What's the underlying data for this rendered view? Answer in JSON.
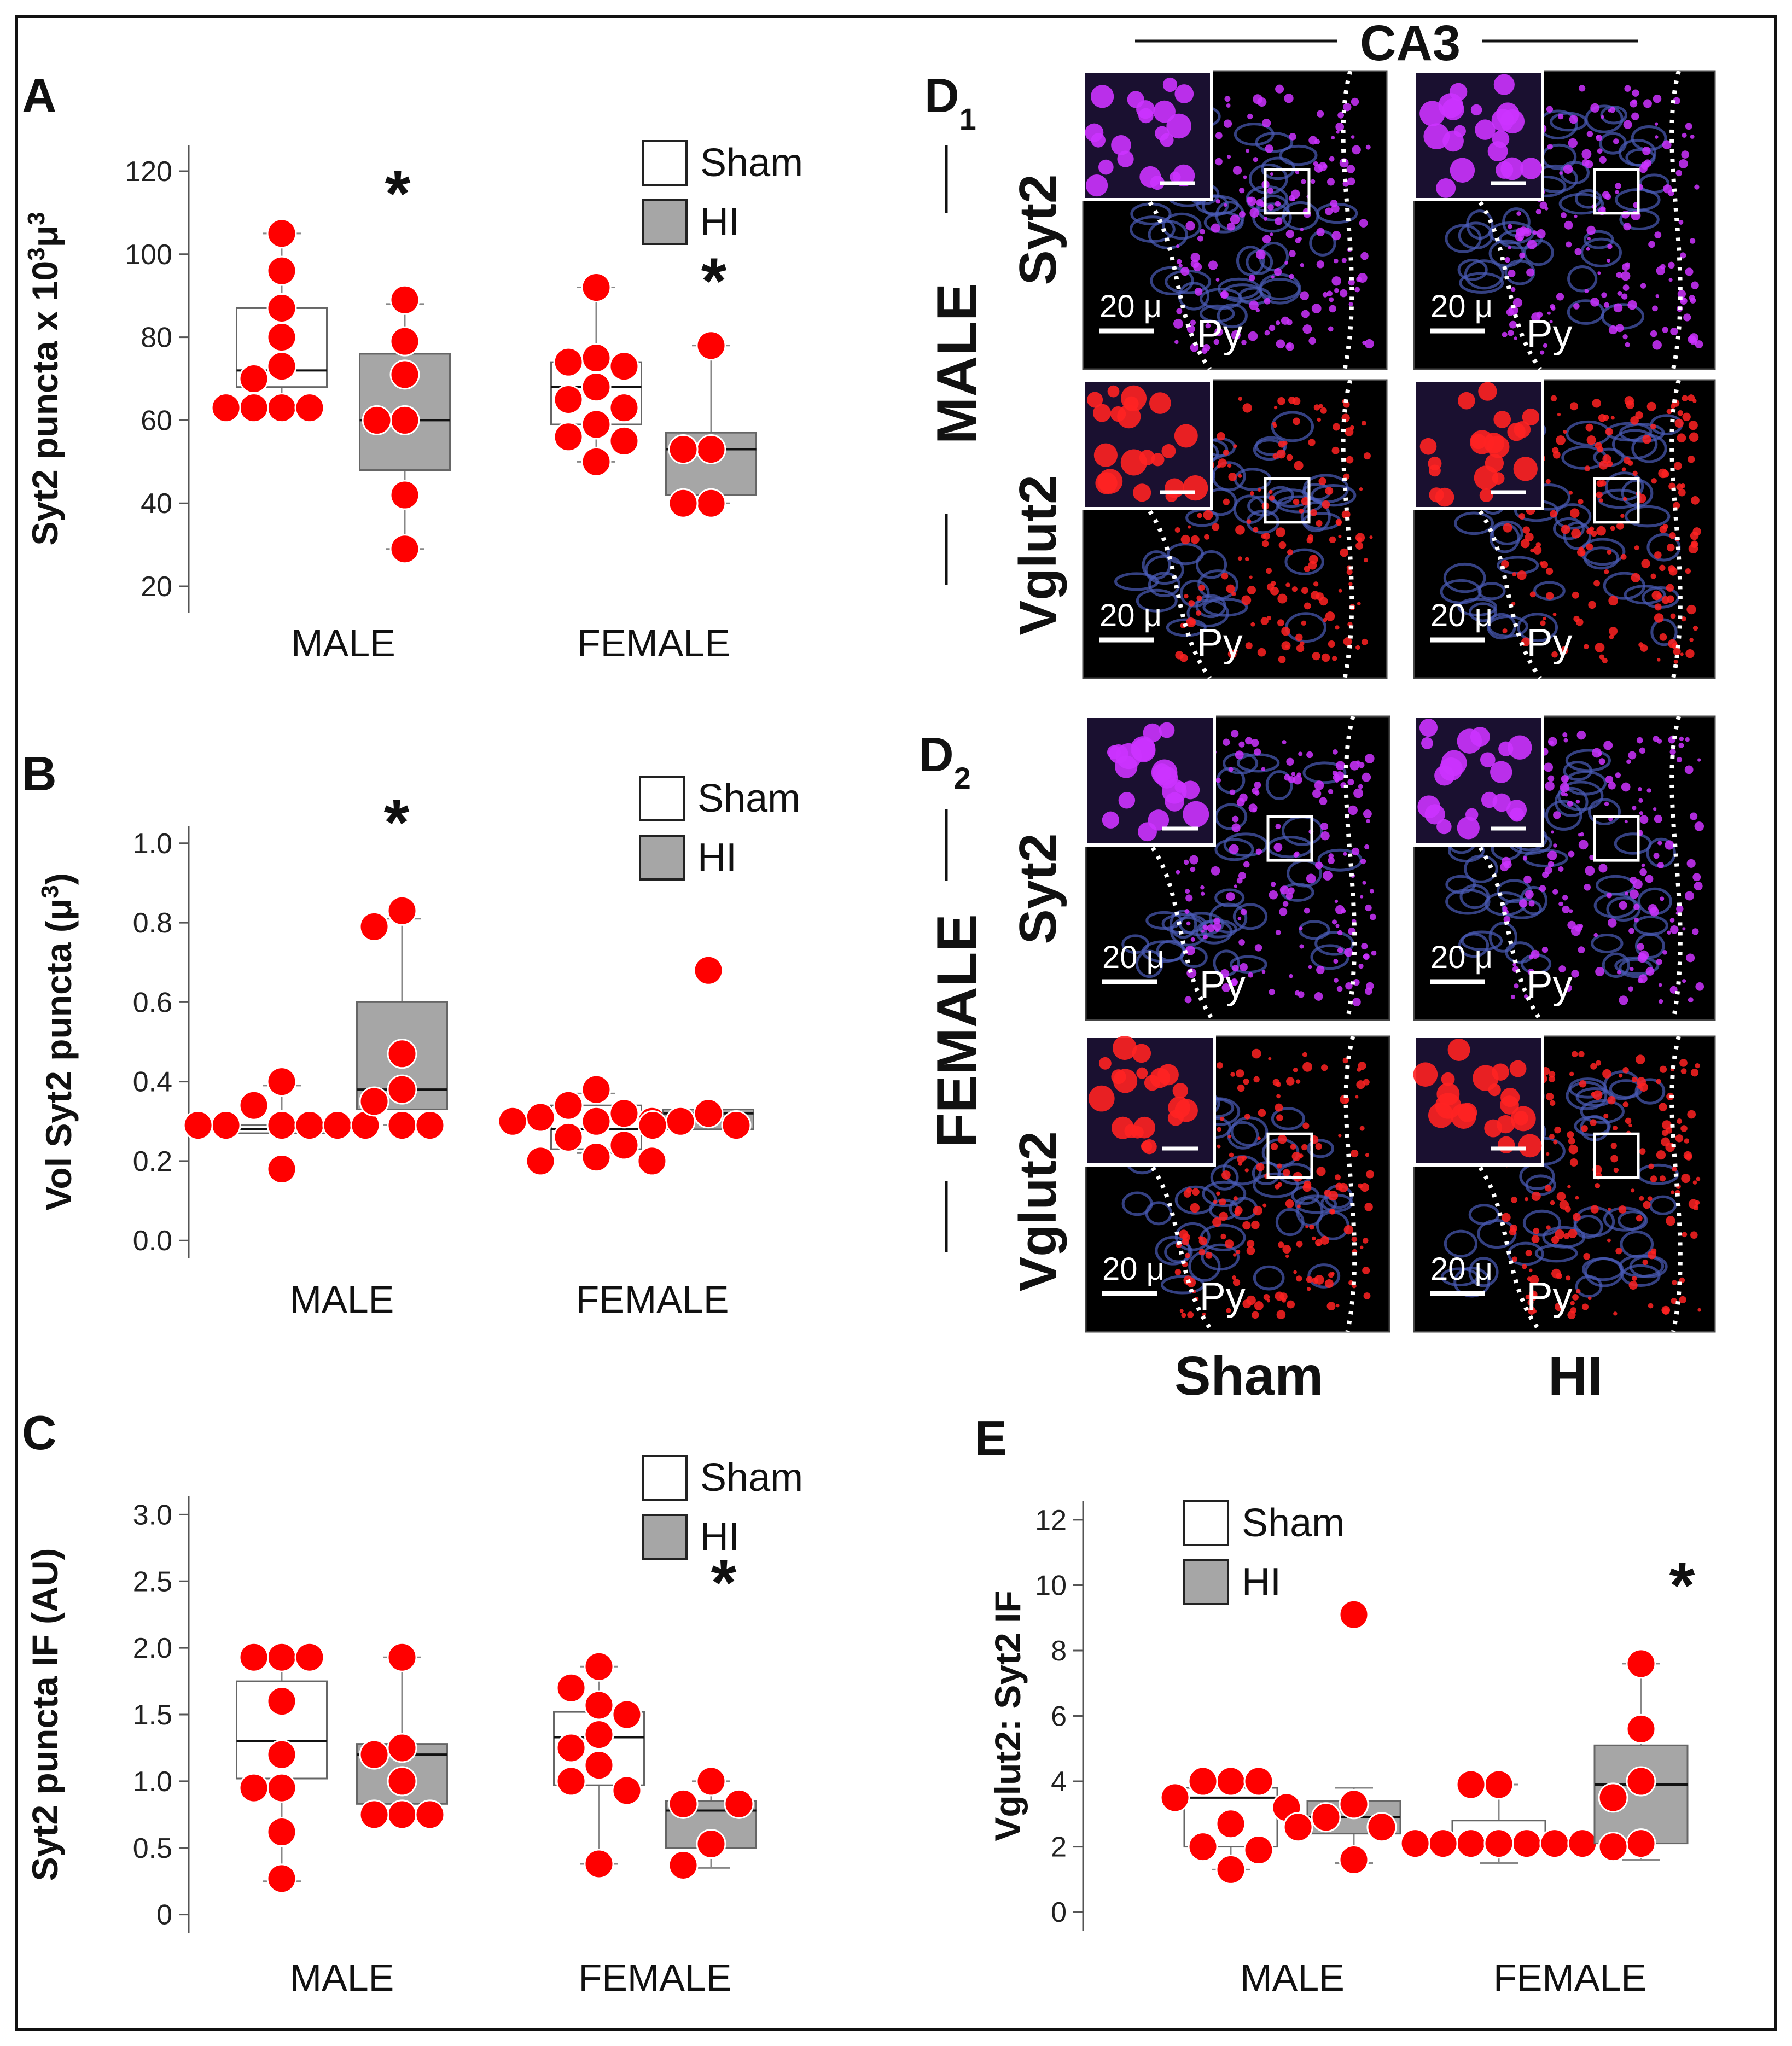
{
  "colors": {
    "sham_fill": "#ffffff",
    "hi_fill": "#a6a6a6",
    "dot": "#ff0000",
    "syt2": "#cc33ff",
    "vglut2": "#ff2222",
    "micro_bg": "#000000"
  },
  "chart_data": [
    {
      "panel": "A",
      "type": "box",
      "ylabel_main": "Syt2 puncta x 10",
      "ylabel_sup1": "3",
      "ylabel_mid": "μ",
      "ylabel_sup2": "3",
      "ylim": [
        15,
        125
      ],
      "yticks": [
        "20",
        "40",
        "60",
        "80",
        "100",
        "120"
      ],
      "categories": [
        "MALE",
        "FEMALE"
      ],
      "legend": [
        "Sham",
        "HI"
      ],
      "series": [
        {
          "name": "Sham",
          "boxes": [
            {
              "min": 63,
              "q1": 68,
              "median": 72,
              "q3": 87,
              "max": 105,
              "points": [
                105,
                96,
                87,
                80,
                73,
                70,
                63,
                63,
                63,
                63
              ]
            },
            {
              "min": 50,
              "q1": 59,
              "median": 68,
              "q3": 74,
              "max": 92,
              "points": [
                92,
                75,
                74,
                73,
                68,
                65,
                63,
                59,
                56,
                55,
                50
              ]
            }
          ]
        },
        {
          "name": "HI",
          "boxes": [
            {
              "min": 29,
              "q1": 48,
              "median": 60,
              "q3": 76,
              "max": 88,
              "points": [
                89,
                79,
                71,
                60,
                60,
                42,
                29
              ]
            },
            {
              "min": 40,
              "q1": 42,
              "median": 53,
              "q3": 57,
              "max": 78,
              "points": [
                78,
                53,
                53,
                40,
                40
              ]
            }
          ]
        }
      ],
      "significance": [
        "HI-MALE",
        "HI-FEMALE"
      ],
      "star": "*"
    },
    {
      "panel": "B",
      "type": "box",
      "ylabel_main": "Vol Syt2 puncta (μ",
      "ylabel_sup1": "3",
      "ylabel_end": ")",
      "ylim": [
        -0.03,
        1.03
      ],
      "yticks": [
        "0.0",
        "0.2",
        "0.4",
        "0.6",
        "0.8",
        "1.0"
      ],
      "categories": [
        "MALE",
        "FEMALE"
      ],
      "legend": [
        "Sham",
        "HI"
      ],
      "series": [
        {
          "name": "Sham",
          "boxes": [
            {
              "min": 0.27,
              "q1": 0.27,
              "median": 0.28,
              "q3": 0.29,
              "max": 0.39,
              "points": [
                0.4,
                0.34,
                0.29,
                0.29,
                0.29,
                0.29,
                0.29,
                0.29,
                0.18
              ]
            },
            {
              "min": 0.22,
              "q1": 0.23,
              "median": 0.28,
              "q3": 0.34,
              "max": 0.37,
              "points": [
                0.38,
                0.34,
                0.32,
                0.31,
                0.3,
                0.3,
                0.3,
                0.26,
                0.24,
                0.21,
                0.2,
                0.2
              ]
            }
          ]
        },
        {
          "name": "HI",
          "boxes": [
            {
              "min": 0.29,
              "q1": 0.33,
              "median": 0.38,
              "q3": 0.6,
              "max": 0.81,
              "points": [
                0.83,
                0.79,
                0.47,
                0.38,
                0.35,
                0.29,
                0.29
              ]
            },
            {
              "min": 0.28,
              "q1": 0.28,
              "median": 0.32,
              "q3": 0.33,
              "max": 0.33,
              "points": [
                0.68,
                0.32,
                0.3,
                0.29,
                0.29
              ]
            }
          ]
        }
      ],
      "significance": [
        "HI-MALE"
      ],
      "star": "*"
    },
    {
      "panel": "C",
      "type": "box",
      "ylabel_main": "Syt2 puncta IF (AU)",
      "ylim": [
        -0.1,
        3.1
      ],
      "yticks": [
        "0",
        "0.5",
        "1.0",
        "1.5",
        "2.0",
        "2.5",
        "3.0"
      ],
      "categories": [
        "MALE",
        "FEMALE"
      ],
      "legend": [
        "Sham",
        "HI"
      ],
      "series": [
        {
          "name": "Sham",
          "boxes": [
            {
              "min": 0.25,
              "q1": 1.02,
              "median": 1.3,
              "q3": 1.75,
              "max": 1.93,
              "points": [
                1.93,
                1.93,
                1.93,
                1.6,
                1.2,
                0.95,
                0.95,
                0.62,
                0.27
              ]
            },
            {
              "min": 0.38,
              "q1": 0.97,
              "median": 1.33,
              "q3": 1.52,
              "max": 1.86,
              "points": [
                1.86,
                1.7,
                1.57,
                1.5,
                1.35,
                1.25,
                1.12,
                1.0,
                0.93,
                0.38
              ]
            }
          ]
        },
        {
          "name": "HI",
          "boxes": [
            {
              "min": 0.75,
              "q1": 0.83,
              "median": 1.2,
              "q3": 1.28,
              "max": 1.93,
              "points": [
                1.93,
                1.25,
                1.2,
                1.0,
                0.75,
                0.75,
                0.75
              ]
            },
            {
              "min": 0.35,
              "q1": 0.5,
              "median": 0.78,
              "q3": 0.85,
              "max": 1.0,
              "points": [
                1.0,
                0.83,
                0.83,
                0.53,
                0.37
              ]
            }
          ]
        }
      ],
      "significance": [
        "HI-FEMALE"
      ],
      "star": "*"
    },
    {
      "panel": "E",
      "type": "box",
      "ylabel_main": "Vglut2: Syt2 IF",
      "ylim": [
        -0.4,
        12.4
      ],
      "yticks": [
        "0",
        "2",
        "4",
        "6",
        "8",
        "10",
        "12"
      ],
      "categories": [
        "MALE",
        "FEMALE"
      ],
      "legend": [
        "Sham",
        "HI"
      ],
      "series": [
        {
          "name": "Sham",
          "boxes": [
            {
              "min": 1.3,
              "q1": 2.0,
              "median": 3.5,
              "q3": 3.8,
              "max": 4.0,
              "points": [
                4.0,
                4.0,
                4.0,
                3.5,
                3.2,
                2.7,
                2.0,
                1.9,
                1.3
              ]
            },
            {
              "min": 1.5,
              "q1": 2.0,
              "median": 2.1,
              "q3": 2.8,
              "max": 3.9,
              "points": [
                3.9,
                3.9,
                2.1,
                2.1,
                2.1,
                2.1,
                2.1,
                2.1,
                2.1,
                2.1,
                2.1
              ]
            }
          ]
        },
        {
          "name": "HI",
          "boxes": [
            {
              "min": 1.5,
              "q1": 2.4,
              "median": 2.9,
              "q3": 3.4,
              "max": 3.8,
              "points": [
                9.1,
                3.3,
                2.9,
                2.6,
                2.6,
                1.6
              ]
            },
            {
              "min": 1.6,
              "q1": 2.1,
              "median": 3.9,
              "q3": 5.1,
              "max": 7.6,
              "points": [
                7.6,
                5.6,
                4.0,
                3.5,
                2.1,
                2.0
              ]
            }
          ]
        }
      ],
      "significance": [
        "HI-FEMALE"
      ],
      "star": "*"
    }
  ],
  "images": {
    "region_label": "CA3",
    "d1_letter": "D",
    "d1_sub": "1",
    "d2_letter": "D",
    "d2_sub": "2",
    "male_label": "MALE",
    "female_label": "FEMALE",
    "syt2_label": "Syt2",
    "vglut2_label": "Vglut2",
    "col_sham": "Sham",
    "col_hi": "HI",
    "scale_text": "20 μ",
    "py_label": "Py"
  }
}
